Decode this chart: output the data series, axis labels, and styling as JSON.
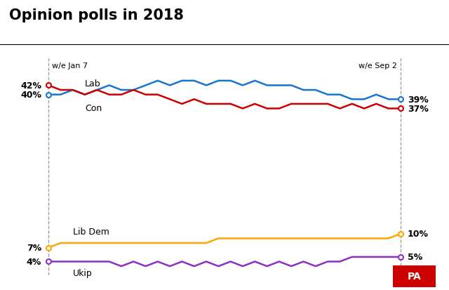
{
  "title": "Opinion polls in 2018",
  "left_label": "w/e Jan 7",
  "right_label": "w/e Sep 2",
  "lab_start": "40%",
  "con_start": "42%",
  "lib_start": "7%",
  "ukip_start": "4%",
  "lab_end": "39%",
  "con_end": "37%",
  "lib_end": "10%",
  "ukip_end": "5%",
  "lab_color": "#1874CD",
  "con_color": "#CC0000",
  "lib_color": "#FFA500",
  "ukip_color": "#8B2FC9",
  "background_color": "#FFFFFF",
  "lab_data": [
    40,
    40,
    41,
    40,
    41,
    42,
    41,
    41,
    42,
    43,
    42,
    43,
    43,
    42,
    43,
    43,
    42,
    43,
    42,
    42,
    42,
    41,
    41,
    40,
    40,
    39,
    39,
    40,
    39,
    39
  ],
  "con_data": [
    42,
    41,
    41,
    40,
    41,
    40,
    40,
    41,
    40,
    40,
    39,
    38,
    39,
    38,
    38,
    38,
    37,
    38,
    37,
    37,
    38,
    38,
    38,
    38,
    37,
    38,
    37,
    38,
    37,
    37
  ],
  "lib_data": [
    7,
    8,
    8,
    8,
    8,
    8,
    8,
    8,
    8,
    8,
    8,
    8,
    8,
    8,
    9,
    9,
    9,
    9,
    9,
    9,
    9,
    9,
    9,
    9,
    9,
    9,
    9,
    9,
    9,
    10
  ],
  "ukip_data": [
    4,
    4,
    4,
    4,
    4,
    4,
    3,
    4,
    3,
    4,
    3,
    4,
    3,
    4,
    3,
    4,
    3,
    4,
    3,
    4,
    3,
    4,
    3,
    4,
    4,
    5,
    5,
    5,
    5,
    5
  ]
}
